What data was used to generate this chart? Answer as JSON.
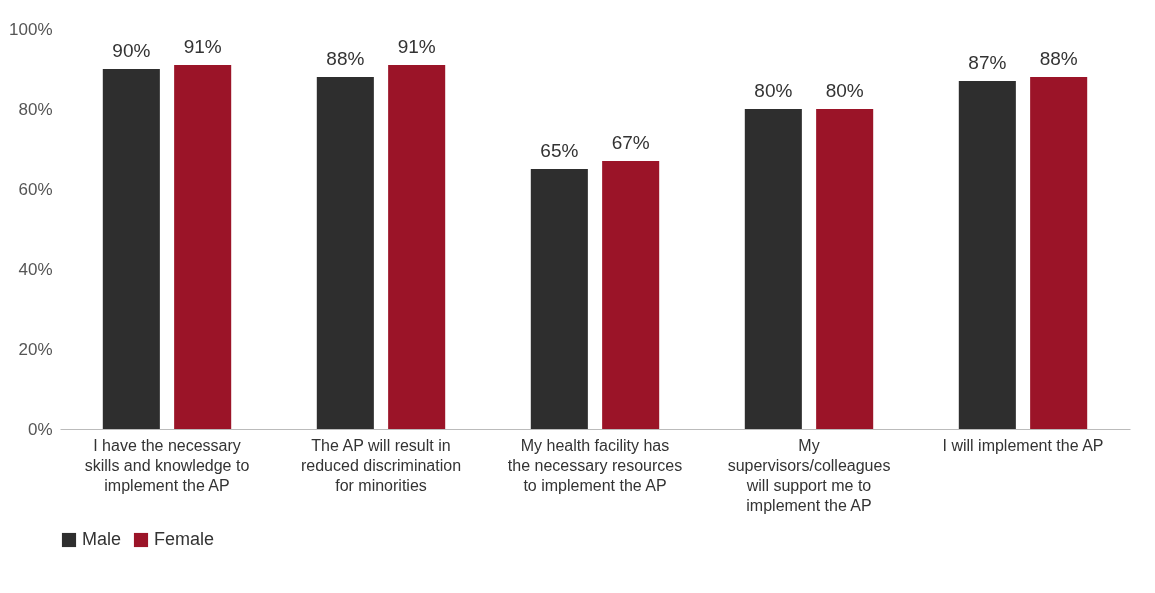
{
  "chart_data": {
    "type": "bar",
    "categories": [
      "I have the necessary skills and knowledge to implement the AP",
      "The AP will result in reduced discrimination for minorities",
      "My health facility has the necessary resources to implement the AP",
      "My supervisors/colleagues will support me to implement the AP",
      "I will implement the AP"
    ],
    "series": [
      {
        "name": "Male",
        "color": "#2e2e2e",
        "values": [
          90,
          88,
          65,
          80,
          87
        ],
        "value_labels": [
          "90%",
          "88%",
          "65%",
          "80%",
          "87%"
        ]
      },
      {
        "name": "Female",
        "color": "#9b1428",
        "values": [
          91,
          91,
          67,
          80,
          88
        ],
        "value_labels": [
          "91%",
          "91%",
          "67%",
          "80%",
          "88%"
        ]
      }
    ],
    "ylim": [
      0,
      100
    ],
    "yticks": [
      {
        "value": 0,
        "label": "0%"
      },
      {
        "value": 20,
        "label": "20%"
      },
      {
        "value": 40,
        "label": "40%"
      },
      {
        "value": 60,
        "label": "60%"
      },
      {
        "value": 80,
        "label": "80%"
      },
      {
        "value": 100,
        "label": "100%"
      }
    ],
    "grid": false,
    "legend": "bottom"
  }
}
